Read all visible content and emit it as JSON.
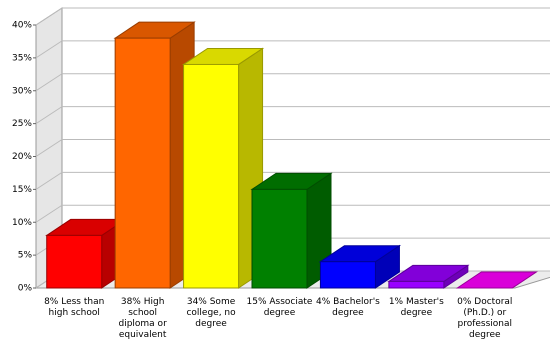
{
  "chart_data": {
    "type": "bar3d",
    "categories": [
      "8% Less than high school",
      "38% High school diploma or equivalent",
      "34% Some college, no degree",
      "15% Associate degree",
      "4% Bachelor's degree",
      "1% Master's degree",
      "0% Doctoral (Ph.D.) or professional degree"
    ],
    "values": [
      8,
      38,
      34,
      15,
      4,
      1,
      0
    ],
    "colors": [
      "#ff0000",
      "#ff6600",
      "#ffff00",
      "#008000",
      "#0000ff",
      "#9900ff",
      "#ff00ff"
    ],
    "ylim": [
      0,
      40
    ],
    "yticks": [
      {
        "value": 0,
        "label": "0%"
      },
      {
        "value": 5,
        "label": "5%"
      },
      {
        "value": 10,
        "label": "10%"
      },
      {
        "value": 15,
        "label": "15%"
      },
      {
        "value": 20,
        "label": "20%"
      },
      {
        "value": 25,
        "label": "25%"
      },
      {
        "value": 30,
        "label": "30%"
      },
      {
        "value": 35,
        "label": "35%"
      },
      {
        "value": 40,
        "label": "40%"
      }
    ],
    "grid": true
  }
}
